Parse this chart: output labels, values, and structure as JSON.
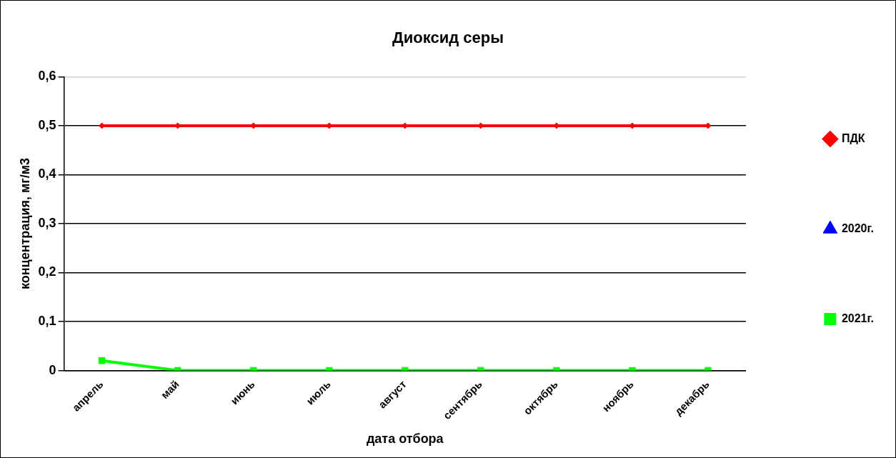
{
  "chart_data": {
    "type": "line",
    "title": "Диоксид серы",
    "xlabel": "дата отбора",
    "ylabel": "концентрация, мг/м3",
    "categories": [
      "апрель",
      "май",
      "июнь",
      "июль",
      "август",
      "сентябрь",
      "октябрь",
      "ноябрь",
      "декабрь"
    ],
    "series": [
      {
        "name": "ПДК",
        "color": "#ff0000",
        "marker": "diamond",
        "values": [
          0.5,
          0.5,
          0.5,
          0.5,
          0.5,
          0.5,
          0.5,
          0.5,
          0.5
        ]
      },
      {
        "name": "2020г.",
        "color": "#0000ff",
        "marker": "triangle",
        "values": [
          null,
          null,
          null,
          null,
          null,
          null,
          null,
          null,
          null
        ]
      },
      {
        "name": "2021г.",
        "color": "#00ff00",
        "marker": "square",
        "values": [
          0.02,
          0,
          0,
          0,
          0,
          0,
          0,
          0,
          0
        ]
      }
    ],
    "ylim": [
      0,
      0.6
    ],
    "yticks": [
      {
        "value": 0,
        "label": "0"
      },
      {
        "value": 0.1,
        "label": "0,1"
      },
      {
        "value": 0.2,
        "label": "0,2"
      },
      {
        "value": 0.3,
        "label": "0,3"
      },
      {
        "value": 0.4,
        "label": "0,4"
      },
      {
        "value": 0.5,
        "label": "0,5"
      },
      {
        "value": 0.6,
        "label": "0,6"
      }
    ],
    "grid": "y",
    "legend": "right"
  }
}
